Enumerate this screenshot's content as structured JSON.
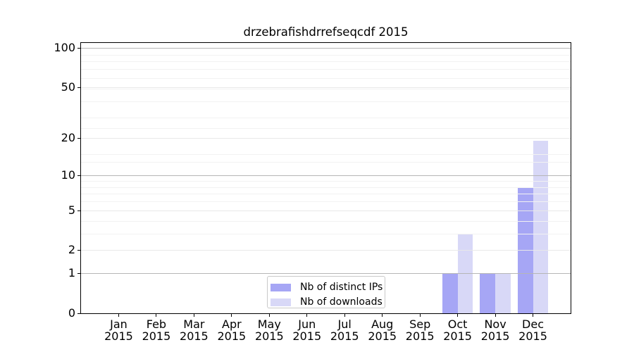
{
  "title": "drzebrafishdrrefseqcdf 2015",
  "chart_data": {
    "type": "bar",
    "title": "drzebrafishdrrefseqcdf 2015",
    "x_months": [
      "Jan",
      "Feb",
      "Mar",
      "Apr",
      "May",
      "Jun",
      "Jul",
      "Aug",
      "Sep",
      "Oct",
      "Nov",
      "Dec"
    ],
    "x_year": "2015",
    "series": [
      {
        "name": "Nb of distinct IPs",
        "color": "#a6a6f5",
        "values": [
          0,
          0,
          0,
          0,
          0,
          0,
          0,
          0,
          0,
          1,
          1,
          8
        ]
      },
      {
        "name": "Nb of downloads",
        "color": "#d8d8f7",
        "values": [
          0,
          0,
          0,
          0,
          0,
          0,
          0,
          0,
          0,
          3,
          1,
          19
        ]
      }
    ],
    "yscale": "log1p",
    "ylim": [
      0,
      112
    ],
    "y_major_ticks": [
      0,
      1,
      2,
      5,
      10,
      20,
      50,
      100
    ],
    "y_decade_gridlines": [
      1,
      10,
      100
    ],
    "y_minor_gridlines": [
      3,
      4,
      6,
      7,
      8,
      9,
      13,
      15,
      24,
      29,
      39,
      49,
      59,
      69,
      79,
      89
    ],
    "grid": true,
    "legend_position": "lower center",
    "colors": {
      "axis": "#000000",
      "grid_strong": "#b6b6b6",
      "grid_weak": "#e8e8e8",
      "grid_minor": "#f2f2f2"
    }
  }
}
